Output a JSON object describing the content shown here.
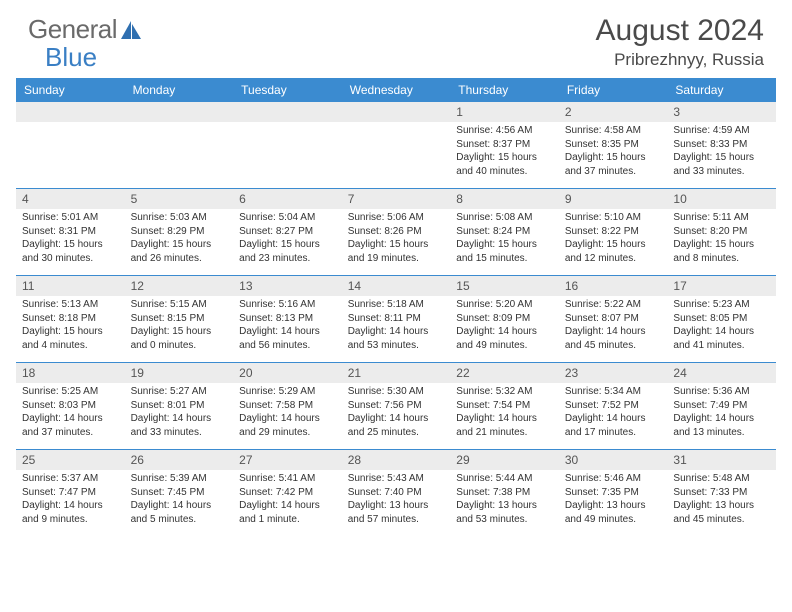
{
  "logo": {
    "word1": "General",
    "word2": "Blue"
  },
  "title": "August 2024",
  "location": "Pribrezhnyy, Russia",
  "colors": {
    "header_bg": "#3b8bd0",
    "header_text": "#ffffff",
    "daynum_bg": "#ececec",
    "rule": "#3b8bd0",
    "logo_gray": "#6a6a6a",
    "logo_blue": "#3a7fc4"
  },
  "dayNames": [
    "Sunday",
    "Monday",
    "Tuesday",
    "Wednesday",
    "Thursday",
    "Friday",
    "Saturday"
  ],
  "weeks": [
    [
      {
        "n": "",
        "lines": []
      },
      {
        "n": "",
        "lines": []
      },
      {
        "n": "",
        "lines": []
      },
      {
        "n": "",
        "lines": []
      },
      {
        "n": "1",
        "lines": [
          "Sunrise: 4:56 AM",
          "Sunset: 8:37 PM",
          "Daylight: 15 hours",
          "and 40 minutes."
        ]
      },
      {
        "n": "2",
        "lines": [
          "Sunrise: 4:58 AM",
          "Sunset: 8:35 PM",
          "Daylight: 15 hours",
          "and 37 minutes."
        ]
      },
      {
        "n": "3",
        "lines": [
          "Sunrise: 4:59 AM",
          "Sunset: 8:33 PM",
          "Daylight: 15 hours",
          "and 33 minutes."
        ]
      }
    ],
    [
      {
        "n": "4",
        "lines": [
          "Sunrise: 5:01 AM",
          "Sunset: 8:31 PM",
          "Daylight: 15 hours",
          "and 30 minutes."
        ]
      },
      {
        "n": "5",
        "lines": [
          "Sunrise: 5:03 AM",
          "Sunset: 8:29 PM",
          "Daylight: 15 hours",
          "and 26 minutes."
        ]
      },
      {
        "n": "6",
        "lines": [
          "Sunrise: 5:04 AM",
          "Sunset: 8:27 PM",
          "Daylight: 15 hours",
          "and 23 minutes."
        ]
      },
      {
        "n": "7",
        "lines": [
          "Sunrise: 5:06 AM",
          "Sunset: 8:26 PM",
          "Daylight: 15 hours",
          "and 19 minutes."
        ]
      },
      {
        "n": "8",
        "lines": [
          "Sunrise: 5:08 AM",
          "Sunset: 8:24 PM",
          "Daylight: 15 hours",
          "and 15 minutes."
        ]
      },
      {
        "n": "9",
        "lines": [
          "Sunrise: 5:10 AM",
          "Sunset: 8:22 PM",
          "Daylight: 15 hours",
          "and 12 minutes."
        ]
      },
      {
        "n": "10",
        "lines": [
          "Sunrise: 5:11 AM",
          "Sunset: 8:20 PM",
          "Daylight: 15 hours",
          "and 8 minutes."
        ]
      }
    ],
    [
      {
        "n": "11",
        "lines": [
          "Sunrise: 5:13 AM",
          "Sunset: 8:18 PM",
          "Daylight: 15 hours",
          "and 4 minutes."
        ]
      },
      {
        "n": "12",
        "lines": [
          "Sunrise: 5:15 AM",
          "Sunset: 8:15 PM",
          "Daylight: 15 hours",
          "and 0 minutes."
        ]
      },
      {
        "n": "13",
        "lines": [
          "Sunrise: 5:16 AM",
          "Sunset: 8:13 PM",
          "Daylight: 14 hours",
          "and 56 minutes."
        ]
      },
      {
        "n": "14",
        "lines": [
          "Sunrise: 5:18 AM",
          "Sunset: 8:11 PM",
          "Daylight: 14 hours",
          "and 53 minutes."
        ]
      },
      {
        "n": "15",
        "lines": [
          "Sunrise: 5:20 AM",
          "Sunset: 8:09 PM",
          "Daylight: 14 hours",
          "and 49 minutes."
        ]
      },
      {
        "n": "16",
        "lines": [
          "Sunrise: 5:22 AM",
          "Sunset: 8:07 PM",
          "Daylight: 14 hours",
          "and 45 minutes."
        ]
      },
      {
        "n": "17",
        "lines": [
          "Sunrise: 5:23 AM",
          "Sunset: 8:05 PM",
          "Daylight: 14 hours",
          "and 41 minutes."
        ]
      }
    ],
    [
      {
        "n": "18",
        "lines": [
          "Sunrise: 5:25 AM",
          "Sunset: 8:03 PM",
          "Daylight: 14 hours",
          "and 37 minutes."
        ]
      },
      {
        "n": "19",
        "lines": [
          "Sunrise: 5:27 AM",
          "Sunset: 8:01 PM",
          "Daylight: 14 hours",
          "and 33 minutes."
        ]
      },
      {
        "n": "20",
        "lines": [
          "Sunrise: 5:29 AM",
          "Sunset: 7:58 PM",
          "Daylight: 14 hours",
          "and 29 minutes."
        ]
      },
      {
        "n": "21",
        "lines": [
          "Sunrise: 5:30 AM",
          "Sunset: 7:56 PM",
          "Daylight: 14 hours",
          "and 25 minutes."
        ]
      },
      {
        "n": "22",
        "lines": [
          "Sunrise: 5:32 AM",
          "Sunset: 7:54 PM",
          "Daylight: 14 hours",
          "and 21 minutes."
        ]
      },
      {
        "n": "23",
        "lines": [
          "Sunrise: 5:34 AM",
          "Sunset: 7:52 PM",
          "Daylight: 14 hours",
          "and 17 minutes."
        ]
      },
      {
        "n": "24",
        "lines": [
          "Sunrise: 5:36 AM",
          "Sunset: 7:49 PM",
          "Daylight: 14 hours",
          "and 13 minutes."
        ]
      }
    ],
    [
      {
        "n": "25",
        "lines": [
          "Sunrise: 5:37 AM",
          "Sunset: 7:47 PM",
          "Daylight: 14 hours",
          "and 9 minutes."
        ]
      },
      {
        "n": "26",
        "lines": [
          "Sunrise: 5:39 AM",
          "Sunset: 7:45 PM",
          "Daylight: 14 hours",
          "and 5 minutes."
        ]
      },
      {
        "n": "27",
        "lines": [
          "Sunrise: 5:41 AM",
          "Sunset: 7:42 PM",
          "Daylight: 14 hours",
          "and 1 minute."
        ]
      },
      {
        "n": "28",
        "lines": [
          "Sunrise: 5:43 AM",
          "Sunset: 7:40 PM",
          "Daylight: 13 hours",
          "and 57 minutes."
        ]
      },
      {
        "n": "29",
        "lines": [
          "Sunrise: 5:44 AM",
          "Sunset: 7:38 PM",
          "Daylight: 13 hours",
          "and 53 minutes."
        ]
      },
      {
        "n": "30",
        "lines": [
          "Sunrise: 5:46 AM",
          "Sunset: 7:35 PM",
          "Daylight: 13 hours",
          "and 49 minutes."
        ]
      },
      {
        "n": "31",
        "lines": [
          "Sunrise: 5:48 AM",
          "Sunset: 7:33 PM",
          "Daylight: 13 hours",
          "and 45 minutes."
        ]
      }
    ]
  ]
}
